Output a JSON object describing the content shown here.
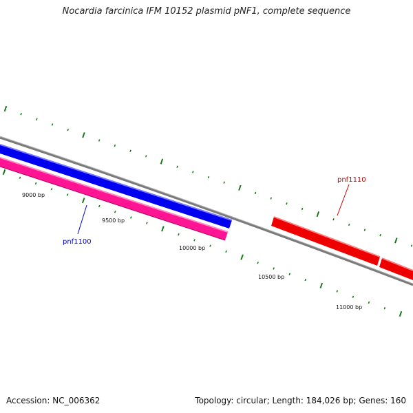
{
  "title": "Nocardia farcinica IFM 10152 plasmid pNF1, complete sequence",
  "footer": {
    "accession": "Accession: NC_006362",
    "summary": "Topology: circular; Length: 184,026 bp; Genes: 160"
  },
  "colors": {
    "backbone": "#808080",
    "tick": "#1a7a1a",
    "forward_gene": "#ff0000",
    "reverse_gene_blue": "#0000ff",
    "reverse_gene_pink": "#ff1493"
  },
  "bp_labels": [
    {
      "text": "9000 bp"
    },
    {
      "text": "9500 bp"
    },
    {
      "text": "10000 bp"
    },
    {
      "text": "10500 bp"
    },
    {
      "text": "11000 bp"
    }
  ],
  "genes": [
    {
      "label": "pnf1100",
      "color": "#0000cc"
    },
    {
      "label": "pnf1110",
      "color": "#cc0000"
    }
  ]
}
